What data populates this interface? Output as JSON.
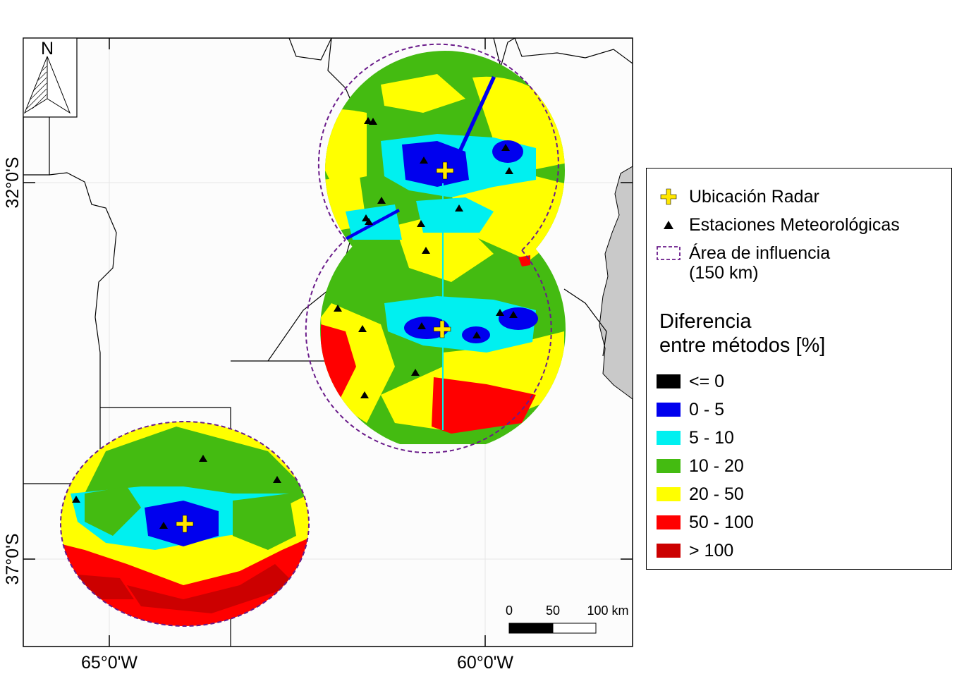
{
  "map": {
    "north_label": "N",
    "lat_labels": [
      "32°0'S",
      "37°0'S"
    ],
    "lon_labels": [
      "65°0'W",
      "60°0'W"
    ],
    "scale_ticks": [
      "0",
      "50",
      "100 km"
    ],
    "colors": {
      "land": "#fcfcfc",
      "water": "#c9c9c9",
      "radius_outline": "#6a1b8a",
      "radar_marker": "#ffe600"
    },
    "radars": [
      {
        "name": "north",
        "lon": -60.5,
        "lat": -32.0
      },
      {
        "name": "central",
        "lon": -60.6,
        "lat": -34.0
      },
      {
        "name": "south",
        "lon": -64.0,
        "lat": -36.6
      }
    ]
  },
  "legend": {
    "items": [
      {
        "label": "Ubicación Radar",
        "icon": "yellow-cross-icon"
      },
      {
        "label": "Estaciones Meteorológicas",
        "icon": "black-triangle-icon"
      },
      {
        "label": "Área de influencia\n(150 km)",
        "icon": "dashed-rectangle-icon"
      }
    ],
    "title": "Diferencia\nentre métodos [%]",
    "classes": [
      {
        "label": "<= 0",
        "color": "#000000"
      },
      {
        "label": "0 - 5",
        "color": "#0000ee"
      },
      {
        "label": "5 - 10",
        "color": "#00f0f0"
      },
      {
        "label": "10 - 20",
        "color": "#44bb11"
      },
      {
        "label": "20 - 50",
        "color": "#ffff00"
      },
      {
        "label": "50 - 100",
        "color": "#ff0000"
      },
      {
        "label": "> 100",
        "color": "#cc0000"
      }
    ]
  }
}
